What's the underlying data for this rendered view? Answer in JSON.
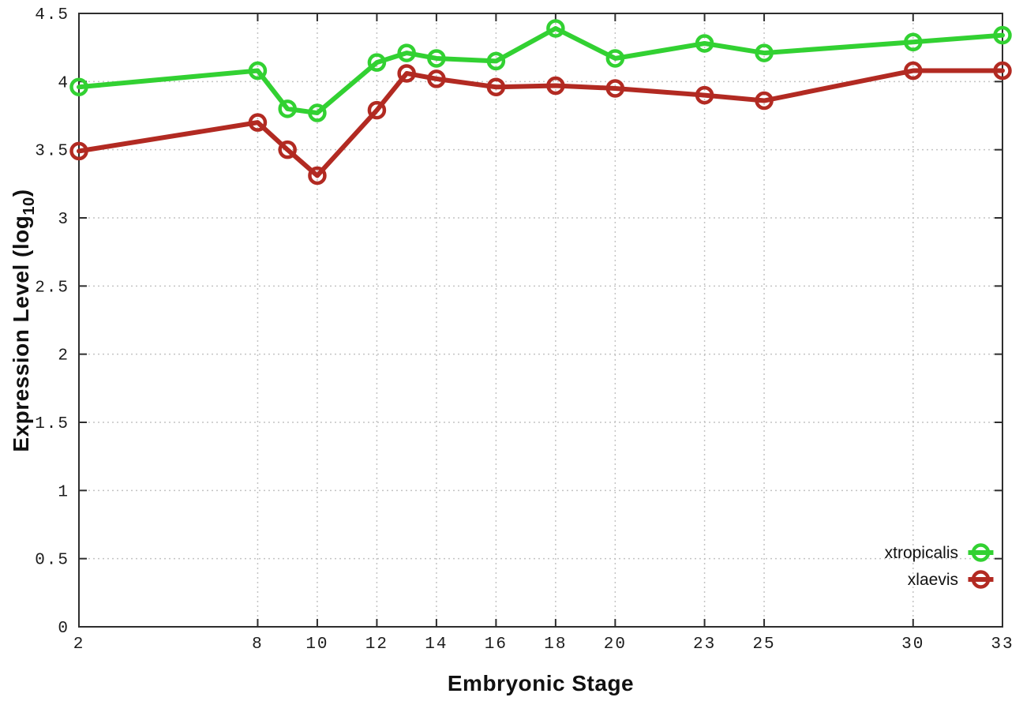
{
  "figure": {
    "background": "#ffffff"
  },
  "labels": {
    "y_title_prefix": "Expression Level (log",
    "y_title_sub": "10",
    "y_title_suffix": ")",
    "x_title": "Embryonic Stage"
  },
  "chart_data": {
    "type": "line",
    "title": "",
    "xlabel": "Embryonic Stage",
    "ylabel": "Expression Level (log10)",
    "x": [
      2,
      8,
      9,
      10,
      12,
      13,
      14,
      16,
      18,
      20,
      23,
      25,
      30,
      33
    ],
    "series": [
      {
        "name": "xtropicalis",
        "color": "#32d132",
        "values": [
          3.96,
          4.08,
          3.8,
          3.77,
          4.14,
          4.21,
          4.17,
          4.15,
          4.39,
          4.17,
          4.28,
          4.21,
          4.29,
          4.34
        ]
      },
      {
        "name": "xlaevis",
        "color": "#b22a22",
        "values": [
          3.49,
          3.7,
          3.5,
          3.31,
          3.79,
          4.06,
          4.02,
          3.96,
          3.97,
          3.95,
          3.9,
          3.86,
          4.08,
          4.08
        ]
      }
    ],
    "xlim": [
      2,
      33
    ],
    "ylim": [
      0,
      4.5
    ],
    "xticks": [
      2,
      8,
      10,
      12,
      14,
      16,
      18,
      20,
      23,
      25,
      30,
      33
    ],
    "xtick_labels": [
      "2",
      "8",
      "10",
      "12",
      "14",
      "16",
      "18",
      "20",
      "23",
      "25",
      "30",
      "33"
    ],
    "yticks": [
      0,
      0.5,
      1,
      1.5,
      2,
      2.5,
      3,
      3.5,
      4,
      4.5
    ],
    "ytick_labels": [
      "0",
      "0.5",
      "1",
      "1.5",
      "2",
      "2.5",
      "3",
      "3.5",
      "4",
      "4.5"
    ],
    "grid": "dotted",
    "grid_on": true,
    "legend_position": "bottom-right-inside",
    "marker": "open-circle"
  },
  "style": {
    "grid_color": "#c4c4c4",
    "border_color": "#2e2e2e",
    "tick_color": "#2e2e2e",
    "text_color": "#1c1c1c",
    "line_width": 6,
    "marker_radius": 9.5,
    "marker_stroke_width": 4.5
  }
}
